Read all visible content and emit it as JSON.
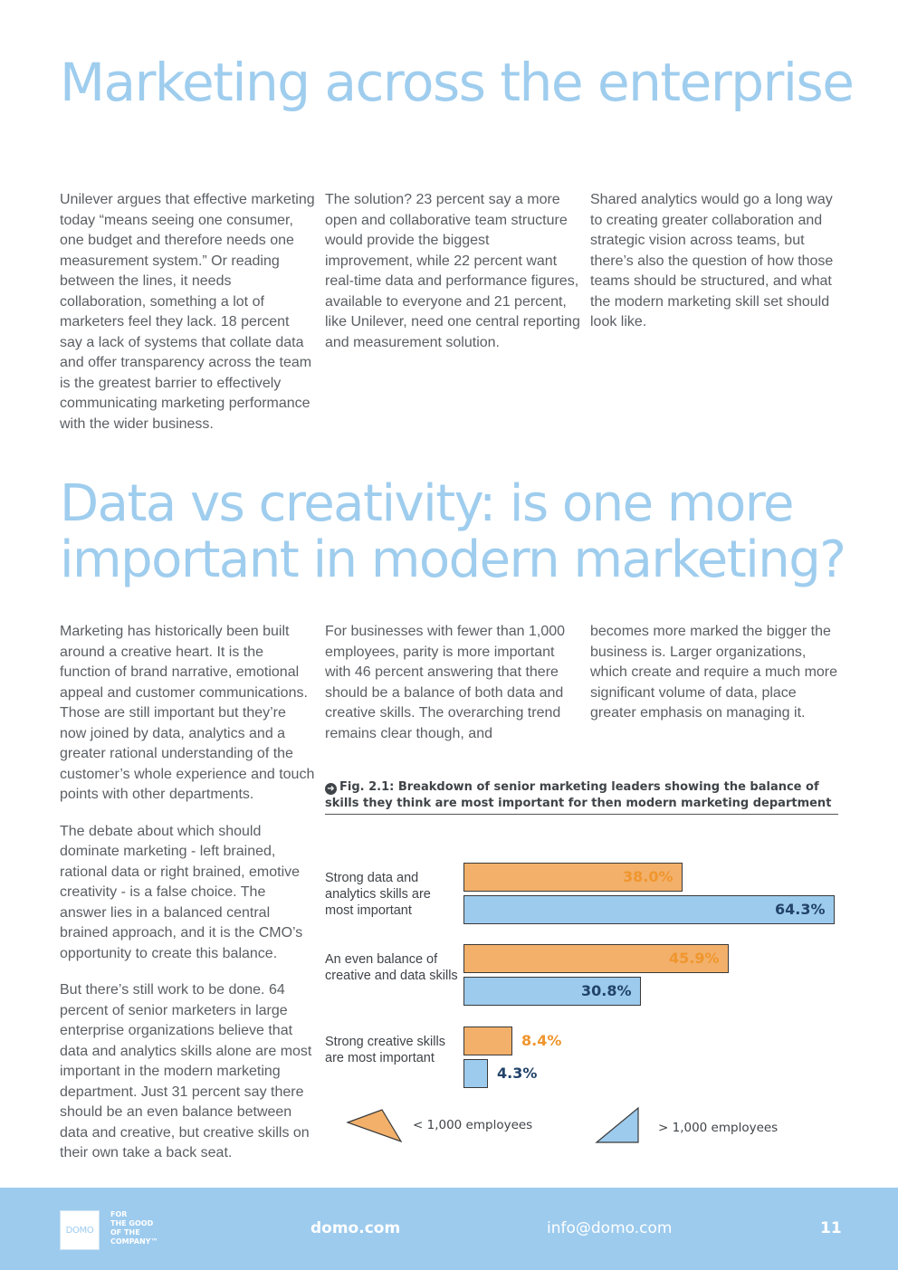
{
  "section1": {
    "title": "Marketing across the enterprise",
    "col1": "Unilever argues that effective marketing today “means seeing one consumer, one budget and therefore needs one measurement system.” Or reading between the lines, it needs collaboration, something a lot of marketers feel they lack. 18 percent say a lack of systems that collate data and offer transparency across the team is the greatest barrier to effectively communicating marketing performance with the wider business.",
    "col2": "The solution? 23 percent say a more open and collaborative team structure would provide the biggest improvement, while 22 percent want real-time data and performance figures, available to everyone and 21 percent, like Unilever, need one central reporting and measurement solution.",
    "col3": "Shared analytics would go a long way to creating greater collaboration and strategic vision across teams, but there’s also the question of how those teams should be structured, and what the modern marketing skill set should look like."
  },
  "section2": {
    "title_line1": "Data vs creativity: is one more",
    "title_line2": "important in modern marketing?",
    "col1_p1": "Marketing has historically been built around a creative heart. It is the function of brand narrative, emotional appeal and customer communications. Those are still important but they’re now joined by data, analytics and a greater rational understanding of the customer’s whole experience and touch points with other departments.",
    "col1_p2": "The debate about which should dominate marketing - left brained, rational data or right brained, emotive creativity - is a false choice. The answer lies in a balanced central brained approach, and it is the CMO’s opportunity to create this balance.",
    "col1_p3": "But there’s still work to be done. 64 percent of senior marketers in large enterprise organizations believe that data and analytics skills alone are most important in the modern marketing department. Just 31 percent say there should be an even balance between data and creative, but creative skills on their own take a back seat.",
    "col2": "For businesses with fewer than 1,000 employees, parity is more important with 46 percent answering that there should be a balance of both data and creative skills. The overarching trend remains clear though, and",
    "col3": "becomes more marked the bigger the business is. Larger organizations, which create and require a much more significant volume of data, place greater emphasis on managing it."
  },
  "figure": {
    "caption": "Fig. 2.1: Breakdown of senior marketing leaders showing the balance of skills they think are most important for then modern marketing department"
  },
  "chart_data": {
    "type": "bar",
    "orientation": "horizontal",
    "categories": [
      "Strong data and analytics skills are most important",
      "An even balance of creative and data skills",
      "Strong creative skills are most important"
    ],
    "series": [
      {
        "name": "< 1,000 employees",
        "values": [
          38.0,
          45.9,
          8.4
        ],
        "labels": [
          "38.0%",
          "45.9%",
          "8.4%"
        ],
        "color": "#f2b06a",
        "label_color": "#f0962e"
      },
      {
        "name": "> 1,000 employees",
        "values": [
          64.3,
          30.8,
          4.3
        ],
        "labels": [
          "64.3%",
          "30.8%",
          "4.3%"
        ],
        "color": "#9dcbed",
        "label_color": "#22436a"
      }
    ],
    "xlim": [
      0,
      64.3
    ],
    "grid": false,
    "legend_position": "bottom"
  },
  "footer": {
    "logo_text": "DOMO",
    "tagline": [
      "FOR",
      "THE GOOD",
      "OF THE",
      "COMPANY™"
    ],
    "site": "domo.com",
    "email": "info@domo.com",
    "page_number": "11",
    "background": "#9dcbee"
  }
}
